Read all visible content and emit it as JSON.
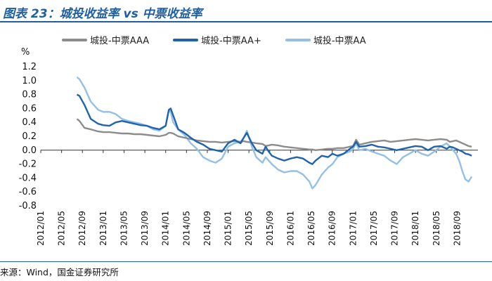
{
  "header": {
    "title": "图表 23：城投收益率 vs 中票收益率"
  },
  "footer": {
    "source": "来源：Wind，国金证券研究所"
  },
  "chart_data": {
    "type": "line",
    "title": "图表 23：城投收益率 vs 中票收益率",
    "ylabel": "%",
    "xlabel": "",
    "ylim": [
      -0.8,
      1.2
    ],
    "yticks": [
      "1.2",
      "1.0",
      "0.8",
      "0.6",
      "0.4",
      "0.2",
      "0.0",
      "-0.2",
      "-0.4",
      "-0.6",
      "-0.8"
    ],
    "x_tick_labels": [
      "2012/01",
      "2012/05",
      "2012/09",
      "2013/01",
      "2013/05",
      "2013/09",
      "2014/01",
      "2014/05",
      "2014/09",
      "2015/01",
      "2015/05",
      "2015/09",
      "2016/01",
      "2016/05",
      "2016/09",
      "2017/01",
      "2017/05",
      "2017/09",
      "2018/01",
      "2018/05",
      "2018/09"
    ],
    "grid": false,
    "legend_position": "top",
    "colors": {
      "aaa": "#8c8c8c",
      "aa_plus": "#1f63ad",
      "aa": "#94bfe6"
    },
    "x": [
      2012.58,
      2012.62,
      2012.7,
      2012.8,
      2012.92,
      2013.0,
      2013.1,
      2013.2,
      2013.3,
      2013.4,
      2013.5,
      2013.6,
      2013.7,
      2013.8,
      2013.9,
      2014.0,
      2014.05,
      2014.08,
      2014.12,
      2014.2,
      2014.3,
      2014.4,
      2014.5,
      2014.6,
      2014.7,
      2014.8,
      2014.9,
      2015.0,
      2015.1,
      2015.2,
      2015.25,
      2015.3,
      2015.38,
      2015.45,
      2015.55,
      2015.6,
      2015.65,
      2015.7,
      2015.8,
      2015.9,
      2016.0,
      2016.1,
      2016.2,
      2016.3,
      2016.35,
      2016.4,
      2016.5,
      2016.6,
      2016.67,
      2016.75,
      2016.85,
      2016.95,
      2017.0,
      2017.05,
      2017.1,
      2017.2,
      2017.3,
      2017.4,
      2017.5,
      2017.6,
      2017.7,
      2017.8,
      2017.9,
      2018.0,
      2018.1,
      2018.2,
      2018.3,
      2018.4,
      2018.5,
      2018.55,
      2018.6,
      2018.65,
      2018.7,
      2018.75,
      2018.8,
      2018.85,
      2018.9
    ],
    "series": [
      {
        "name": "城投-中票AAA",
        "values": [
          0.45,
          0.42,
          0.32,
          0.3,
          0.27,
          0.26,
          0.26,
          0.25,
          0.24,
          0.24,
          0.23,
          0.23,
          0.22,
          0.21,
          0.2,
          0.22,
          0.25,
          0.25,
          0.24,
          0.2,
          0.18,
          0.16,
          0.14,
          0.13,
          0.12,
          0.12,
          0.11,
          0.12,
          0.13,
          0.12,
          0.13,
          0.12,
          0.11,
          0.1,
          0.09,
          0.06,
          0.07,
          0.08,
          0.07,
          0.05,
          0.04,
          0.03,
          0.02,
          0.01,
          0.01,
          0.0,
          0.01,
          0.02,
          0.02,
          0.03,
          0.03,
          0.05,
          0.06,
          0.15,
          0.08,
          0.1,
          0.12,
          0.13,
          0.14,
          0.12,
          0.13,
          0.14,
          0.15,
          0.16,
          0.15,
          0.14,
          0.15,
          0.16,
          0.15,
          0.12,
          0.13,
          0.14,
          0.12,
          0.1,
          0.08,
          0.06,
          0.05
        ]
      },
      {
        "name": "城投-中票AA+",
        "values": [
          0.8,
          0.78,
          0.65,
          0.45,
          0.38,
          0.36,
          0.35,
          0.4,
          0.42,
          0.4,
          0.38,
          0.36,
          0.35,
          0.32,
          0.3,
          0.35,
          0.58,
          0.6,
          0.5,
          0.3,
          0.25,
          0.18,
          0.12,
          0.08,
          0.02,
          0.0,
          -0.02,
          0.1,
          0.15,
          0.1,
          0.18,
          0.25,
          0.1,
          0.0,
          -0.05,
          0.05,
          -0.02,
          -0.08,
          -0.12,
          -0.15,
          -0.12,
          -0.1,
          -0.12,
          -0.18,
          -0.2,
          -0.15,
          -0.08,
          -0.1,
          -0.05,
          -0.08,
          -0.05,
          0.02,
          0.05,
          0.12,
          0.05,
          0.06,
          0.08,
          0.05,
          0.04,
          0.02,
          0.0,
          0.02,
          0.04,
          0.06,
          0.05,
          0.0,
          0.05,
          0.06,
          0.02,
          0.05,
          0.04,
          0.02,
          0.0,
          -0.02,
          -0.05,
          -0.06,
          -0.08
        ]
      },
      {
        "name": "城投-中票AA",
        "values": [
          1.05,
          1.02,
          0.9,
          0.7,
          0.58,
          0.55,
          0.55,
          0.52,
          0.45,
          0.42,
          0.4,
          0.38,
          0.35,
          0.3,
          0.28,
          0.35,
          0.58,
          0.55,
          0.4,
          0.3,
          0.22,
          0.1,
          0.02,
          -0.1,
          -0.15,
          -0.18,
          -0.12,
          0.05,
          0.1,
          0.12,
          0.18,
          0.28,
          0.05,
          -0.1,
          -0.18,
          -0.1,
          -0.15,
          -0.2,
          -0.28,
          -0.32,
          -0.3,
          -0.3,
          -0.35,
          -0.45,
          -0.55,
          -0.5,
          -0.35,
          -0.25,
          -0.2,
          -0.1,
          -0.05,
          -0.02,
          0.02,
          0.1,
          0.0,
          0.02,
          -0.02,
          -0.05,
          -0.08,
          -0.15,
          -0.2,
          -0.1,
          -0.05,
          0.0,
          -0.05,
          -0.08,
          -0.02,
          0.05,
          0.1,
          0.05,
          0.0,
          -0.05,
          -0.15,
          -0.3,
          -0.42,
          -0.45,
          -0.38
        ]
      }
    ]
  }
}
